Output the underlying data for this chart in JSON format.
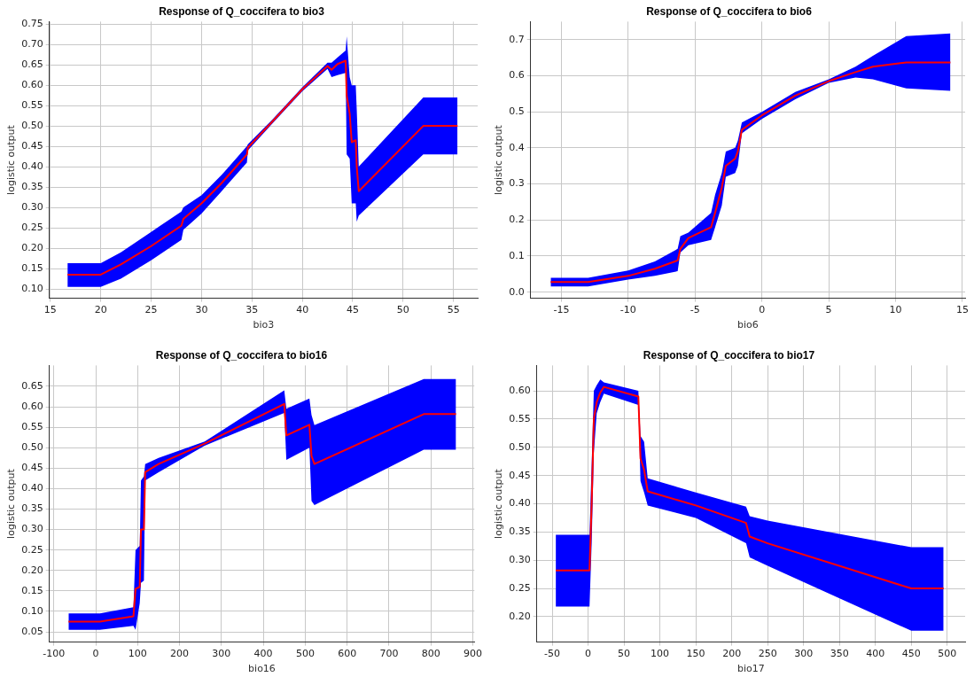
{
  "chart_data": [
    {
      "type": "line",
      "title": "Response of Q_coccifera to bio3",
      "xlabel": "bio3",
      "ylabel": "logistic output",
      "grid": true,
      "legend": false,
      "marker": "none",
      "xlim": [
        14.9,
        57.4
      ],
      "xticks": [
        15,
        20,
        25,
        30,
        35,
        40,
        45,
        50,
        55
      ],
      "ylim": [
        0.077,
        0.756
      ],
      "yticks": [
        {
          "value": 0.1,
          "label": "0.10"
        },
        {
          "value": 0.15,
          "label": "0.15"
        },
        {
          "value": 0.2,
          "label": "0.20"
        },
        {
          "value": 0.25,
          "label": "0.25"
        },
        {
          "value": 0.3,
          "label": "0.30"
        },
        {
          "value": 0.35,
          "label": "0.35"
        },
        {
          "value": 0.4,
          "label": "0.40"
        },
        {
          "value": 0.45,
          "label": "0.45"
        },
        {
          "value": 0.5,
          "label": "0.50"
        },
        {
          "value": 0.55,
          "label": "0.55"
        },
        {
          "value": 0.6,
          "label": "0.60"
        },
        {
          "value": 0.65,
          "label": "0.65"
        },
        {
          "value": 0.7,
          "label": "0.70"
        },
        {
          "value": 0.75,
          "label": "0.75"
        }
      ],
      "x": [
        16.7,
        20,
        22,
        25,
        28,
        28.2,
        30,
        32,
        34.5,
        34.6,
        37,
        40,
        42.5,
        42.9,
        43.5,
        44.3,
        44.4,
        44.7,
        44.9,
        45.3,
        45.4,
        45.6,
        52,
        55.4
      ],
      "series": [
        {
          "color": "#ff0000",
          "values": [
            0.135,
            0.135,
            0.16,
            0.205,
            0.255,
            0.272,
            0.31,
            0.36,
            0.43,
            0.447,
            0.51,
            0.59,
            0.647,
            0.638,
            0.652,
            0.66,
            0.575,
            0.53,
            0.46,
            0.465,
            0.4,
            0.34,
            0.5,
            0.5
          ],
          "lower": [
            0.105,
            0.105,
            0.125,
            0.17,
            0.22,
            0.245,
            0.285,
            0.34,
            0.41,
            0.44,
            0.505,
            0.585,
            0.64,
            0.62,
            0.625,
            0.63,
            0.43,
            0.42,
            0.31,
            0.31,
            0.265,
            0.28,
            0.43,
            0.43
          ],
          "upper": [
            0.163,
            0.163,
            0.19,
            0.24,
            0.29,
            0.3,
            0.33,
            0.38,
            0.45,
            0.455,
            0.515,
            0.595,
            0.655,
            0.655,
            0.668,
            0.685,
            0.72,
            0.62,
            0.6,
            0.6,
            0.54,
            0.4,
            0.57,
            0.57
          ]
        }
      ]
    },
    {
      "type": "line",
      "title": "Response of Q_coccifera to bio6",
      "xlabel": "bio6",
      "ylabel": "logistic output",
      "grid": true,
      "legend": false,
      "marker": "none",
      "xlim": [
        -17.3,
        15.2
      ],
      "xticks": [
        -15,
        -10,
        -5,
        0,
        5,
        10,
        15
      ],
      "ylim": [
        -0.017,
        0.75
      ],
      "yticks": [
        {
          "value": 0,
          "label": "0.0"
        },
        0.1,
        0.2,
        0.3,
        0.4,
        0.5,
        0.6,
        0.7
      ],
      "x": [
        -15.8,
        -13,
        -10,
        -8,
        -6.3,
        -6.1,
        -5.5,
        -3.8,
        -3.5,
        -3,
        -2.7,
        -2,
        -1.8,
        -1.5,
        0,
        2.5,
        5,
        7,
        8.3,
        10.8,
        14.1
      ],
      "series": [
        {
          "color": "#ff0000",
          "values": [
            0.028,
            0.028,
            0.045,
            0.065,
            0.088,
            0.12,
            0.15,
            0.18,
            0.22,
            0.29,
            0.35,
            0.37,
            0.39,
            0.45,
            0.49,
            0.545,
            0.585,
            0.61,
            0.625,
            0.637,
            0.637
          ],
          "lower": [
            0.016,
            0.016,
            0.035,
            0.045,
            0.058,
            0.11,
            0.13,
            0.145,
            0.18,
            0.24,
            0.32,
            0.33,
            0.35,
            0.44,
            0.48,
            0.535,
            0.58,
            0.595,
            0.59,
            0.565,
            0.558
          ],
          "upper": [
            0.04,
            0.04,
            0.06,
            0.085,
            0.12,
            0.155,
            0.165,
            0.22,
            0.27,
            0.33,
            0.39,
            0.4,
            0.42,
            0.47,
            0.5,
            0.555,
            0.59,
            0.625,
            0.655,
            0.71,
            0.717
          ]
        }
      ]
    },
    {
      "type": "line",
      "title": "Response of Q_coccifera to bio16",
      "xlabel": "bio16",
      "ylabel": "logistic output",
      "grid": true,
      "legend": false,
      "marker": "none",
      "xlim": [
        -110.7,
        903.8
      ],
      "xticks": [
        -100,
        0,
        100,
        200,
        300,
        400,
        500,
        600,
        700,
        800,
        900
      ],
      "ylim": [
        0.025,
        0.701
      ],
      "yticks": [
        {
          "value": 0.05,
          "label": "0.05"
        },
        {
          "value": 0.1,
          "label": "0.10"
        },
        {
          "value": 0.15,
          "label": "0.15"
        },
        {
          "value": 0.2,
          "label": "0.20"
        },
        {
          "value": 0.25,
          "label": "0.25"
        },
        {
          "value": 0.3,
          "label": "0.30"
        },
        {
          "value": 0.35,
          "label": "0.35"
        },
        {
          "value": 0.4,
          "label": "0.40"
        },
        {
          "value": 0.45,
          "label": "0.45"
        },
        {
          "value": 0.5,
          "label": "0.50"
        },
        {
          "value": 0.55,
          "label": "0.55"
        },
        {
          "value": 0.6,
          "label": "0.60"
        },
        {
          "value": 0.65,
          "label": "0.65"
        }
      ],
      "x": [
        -65,
        10,
        90,
        95,
        105,
        108,
        115,
        118,
        150,
        260,
        450,
        455,
        510,
        515,
        522,
        783,
        860
      ],
      "series": [
        {
          "color": "#ff0000",
          "values": [
            0.075,
            0.075,
            0.088,
            0.155,
            0.16,
            0.3,
            0.3,
            0.44,
            0.46,
            0.51,
            0.607,
            0.53,
            0.556,
            0.48,
            0.46,
            0.582,
            0.582
          ],
          "lower": [
            0.055,
            0.055,
            0.065,
            0.055,
            0.12,
            0.17,
            0.175,
            0.42,
            0.44,
            0.505,
            0.585,
            0.47,
            0.5,
            0.37,
            0.36,
            0.495,
            0.495
          ],
          "upper": [
            0.095,
            0.095,
            0.11,
            0.25,
            0.26,
            0.42,
            0.43,
            0.46,
            0.475,
            0.515,
            0.64,
            0.595,
            0.62,
            0.58,
            0.555,
            0.668,
            0.668
          ]
        }
      ]
    },
    {
      "type": "line",
      "title": "Response of Q_coccifera to bio17",
      "xlabel": "bio17",
      "ylabel": "logistic output",
      "grid": true,
      "legend": false,
      "marker": "none",
      "xlim": [
        -71.4,
        525
      ],
      "xticks": [
        -50,
        0,
        50,
        100,
        150,
        200,
        250,
        300,
        350,
        400,
        450,
        500
      ],
      "ylim": [
        0.155,
        0.645
      ],
      "yticks": [
        {
          "value": 0.2,
          "label": "0.20"
        },
        {
          "value": 0.25,
          "label": "0.25"
        },
        {
          "value": 0.3,
          "label": "0.30"
        },
        {
          "value": 0.35,
          "label": "0.35"
        },
        {
          "value": 0.4,
          "label": "0.40"
        },
        {
          "value": 0.45,
          "label": "0.45"
        },
        {
          "value": 0.5,
          "label": "0.50"
        },
        {
          "value": 0.55,
          "label": "0.55"
        },
        {
          "value": 0.6,
          "label": "0.60"
        }
      ],
      "x": [
        -45,
        2,
        5,
        8,
        12,
        17,
        22,
        70,
        73,
        78,
        83,
        150,
        220,
        225,
        250,
        450,
        495
      ],
      "series": [
        {
          "color": "#ff0000",
          "values": [
            0.282,
            0.282,
            0.4,
            0.55,
            0.58,
            0.597,
            0.607,
            0.59,
            0.48,
            0.46,
            0.422,
            0.397,
            0.366,
            0.342,
            0.33,
            0.25,
            0.25
          ],
          "lower": [
            0.218,
            0.218,
            0.33,
            0.49,
            0.56,
            0.58,
            0.595,
            0.575,
            0.44,
            0.42,
            0.397,
            0.375,
            0.33,
            0.305,
            0.29,
            0.175,
            0.175
          ],
          "upper": [
            0.345,
            0.345,
            0.47,
            0.6,
            0.61,
            0.62,
            0.615,
            0.6,
            0.52,
            0.51,
            0.445,
            0.42,
            0.395,
            0.378,
            0.37,
            0.323,
            0.323
          ]
        }
      ]
    }
  ]
}
